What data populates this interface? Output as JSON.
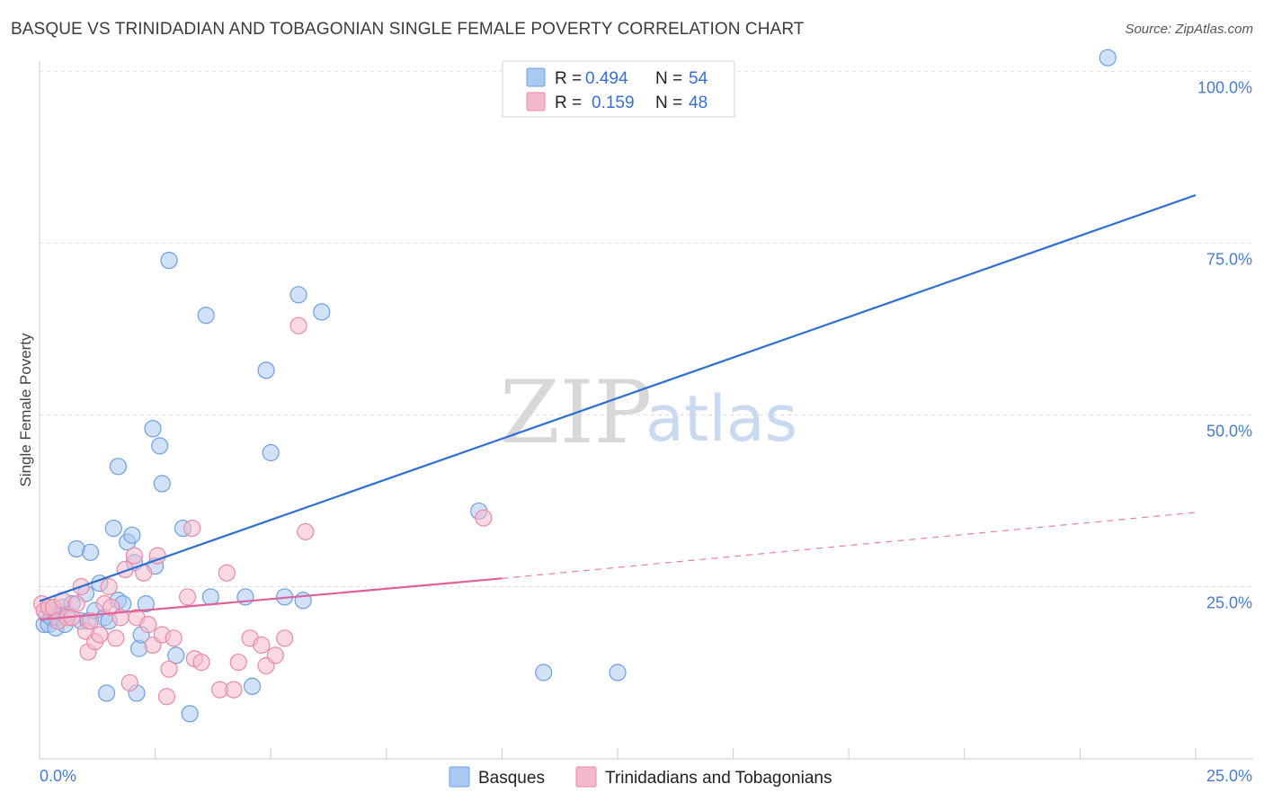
{
  "header": {
    "title": "BASQUE VS TRINIDADIAN AND TOBAGONIAN SINGLE FEMALE POVERTY CORRELATION CHART",
    "source": "Source: ZipAtlas.com"
  },
  "watermark": {
    "zip": "ZIP",
    "atlas": "atlas"
  },
  "legend": {
    "r_label": "R =",
    "n_label": "N =",
    "rows": [
      {
        "r": "0.494",
        "n": "54",
        "color": "#a9c8f2"
      },
      {
        "r": "0.159",
        "n": "48",
        "color": "#f5b9cc"
      }
    ]
  },
  "chart_data": {
    "type": "scatter",
    "xlabel": "",
    "ylabel": "Single Female Poverty",
    "xlim": [
      0,
      25
    ],
    "ylim": [
      0,
      100
    ],
    "x_tick_labels": [
      "0.0%",
      "25.0%"
    ],
    "y_ticks": [
      25,
      50,
      75,
      100
    ],
    "y_tick_labels": [
      "25.0%",
      "50.0%",
      "75.0%",
      "100.0%"
    ],
    "grid": true,
    "legend_position": "top-center",
    "series": [
      {
        "name": "Basques",
        "color": "#a9c8f2",
        "stroke": "#6f9fe0",
        "trend": {
          "x0": 0,
          "y0": 22.9,
          "x1": 25,
          "y1": 82.0,
          "color": "#2f6fd0"
        },
        "points": [
          [
            0.1,
            19.5
          ],
          [
            0.15,
            21.0
          ],
          [
            0.2,
            19.5
          ],
          [
            0.25,
            20.5
          ],
          [
            0.3,
            21.5
          ],
          [
            0.35,
            19.0
          ],
          [
            0.4,
            20.5
          ],
          [
            0.5,
            22.0
          ],
          [
            0.55,
            19.5
          ],
          [
            0.6,
            21.0
          ],
          [
            0.7,
            22.5
          ],
          [
            0.8,
            30.5
          ],
          [
            0.9,
            20.0
          ],
          [
            1.0,
            24.0
          ],
          [
            1.05,
            20.0
          ],
          [
            1.1,
            30.0
          ],
          [
            1.2,
            21.5
          ],
          [
            1.3,
            25.5
          ],
          [
            1.4,
            20.5
          ],
          [
            1.5,
            20.0
          ],
          [
            1.45,
            9.5
          ],
          [
            1.6,
            33.5
          ],
          [
            1.7,
            23.0
          ],
          [
            1.8,
            22.5
          ],
          [
            1.9,
            31.5
          ],
          [
            2.0,
            32.5
          ],
          [
            2.05,
            28.5
          ],
          [
            2.1,
            9.5
          ],
          [
            2.15,
            16.0
          ],
          [
            2.2,
            18.0
          ],
          [
            2.3,
            22.5
          ],
          [
            2.45,
            48.0
          ],
          [
            2.5,
            28.0
          ],
          [
            2.6,
            45.5
          ],
          [
            2.65,
            40.0
          ],
          [
            2.8,
            72.5
          ],
          [
            2.95,
            15.0
          ],
          [
            3.1,
            33.5
          ],
          [
            3.25,
            6.5
          ],
          [
            3.6,
            64.5
          ],
          [
            3.7,
            23.5
          ],
          [
            4.45,
            23.5
          ],
          [
            4.6,
            10.5
          ],
          [
            4.9,
            56.5
          ],
          [
            5.0,
            44.5
          ],
          [
            5.3,
            23.5
          ],
          [
            5.6,
            67.5
          ],
          [
            5.7,
            23.0
          ],
          [
            6.1,
            65.0
          ],
          [
            9.5,
            36.0
          ],
          [
            10.9,
            12.5
          ],
          [
            12.5,
            12.5
          ],
          [
            23.1,
            102.0
          ],
          [
            1.7,
            42.5
          ]
        ]
      },
      {
        "name": "Trinidadians and Tobagonians",
        "color": "#f5b9cc",
        "stroke": "#e98aa8",
        "trend": {
          "x0": 0,
          "y0": 20.2,
          "x1": 10.0,
          "y1": 26.2,
          "color": "#e0609a"
        },
        "trend_extension": {
          "x0": 10.0,
          "y0": 26.2,
          "x1": 25,
          "y1": 35.8
        },
        "points": [
          [
            0.05,
            22.5
          ],
          [
            0.1,
            21.5
          ],
          [
            0.2,
            22.0
          ],
          [
            0.3,
            22.0
          ],
          [
            0.4,
            20.0
          ],
          [
            0.5,
            23.0
          ],
          [
            0.6,
            20.5
          ],
          [
            0.7,
            20.5
          ],
          [
            0.8,
            22.5
          ],
          [
            0.9,
            25.0
          ],
          [
            1.0,
            18.5
          ],
          [
            1.05,
            15.5
          ],
          [
            1.1,
            20.0
          ],
          [
            1.2,
            17.0
          ],
          [
            1.3,
            18.0
          ],
          [
            1.4,
            22.5
          ],
          [
            1.5,
            25.0
          ],
          [
            1.55,
            22.0
          ],
          [
            1.65,
            17.5
          ],
          [
            1.75,
            20.5
          ],
          [
            1.85,
            27.5
          ],
          [
            1.95,
            11.0
          ],
          [
            2.05,
            29.5
          ],
          [
            2.1,
            20.5
          ],
          [
            2.25,
            27.0
          ],
          [
            2.35,
            19.5
          ],
          [
            2.45,
            16.5
          ],
          [
            2.55,
            29.5
          ],
          [
            2.65,
            18.0
          ],
          [
            2.75,
            9.0
          ],
          [
            2.8,
            13.0
          ],
          [
            2.9,
            17.5
          ],
          [
            3.2,
            23.5
          ],
          [
            3.3,
            33.5
          ],
          [
            3.35,
            14.5
          ],
          [
            3.5,
            14.0
          ],
          [
            3.9,
            10.0
          ],
          [
            4.05,
            27.0
          ],
          [
            4.2,
            10.0
          ],
          [
            4.3,
            14.0
          ],
          [
            4.55,
            17.5
          ],
          [
            4.8,
            16.5
          ],
          [
            4.9,
            13.5
          ],
          [
            5.1,
            15.0
          ],
          [
            5.3,
            17.5
          ],
          [
            5.6,
            63.0
          ],
          [
            5.75,
            33.0
          ],
          [
            9.6,
            35.0
          ]
        ]
      }
    ]
  },
  "bottom_legend": [
    {
      "label": "Basques",
      "color": "#a9c8f2"
    },
    {
      "label": "Trinidadians and Tobagonians",
      "color": "#f5b9cc"
    }
  ]
}
